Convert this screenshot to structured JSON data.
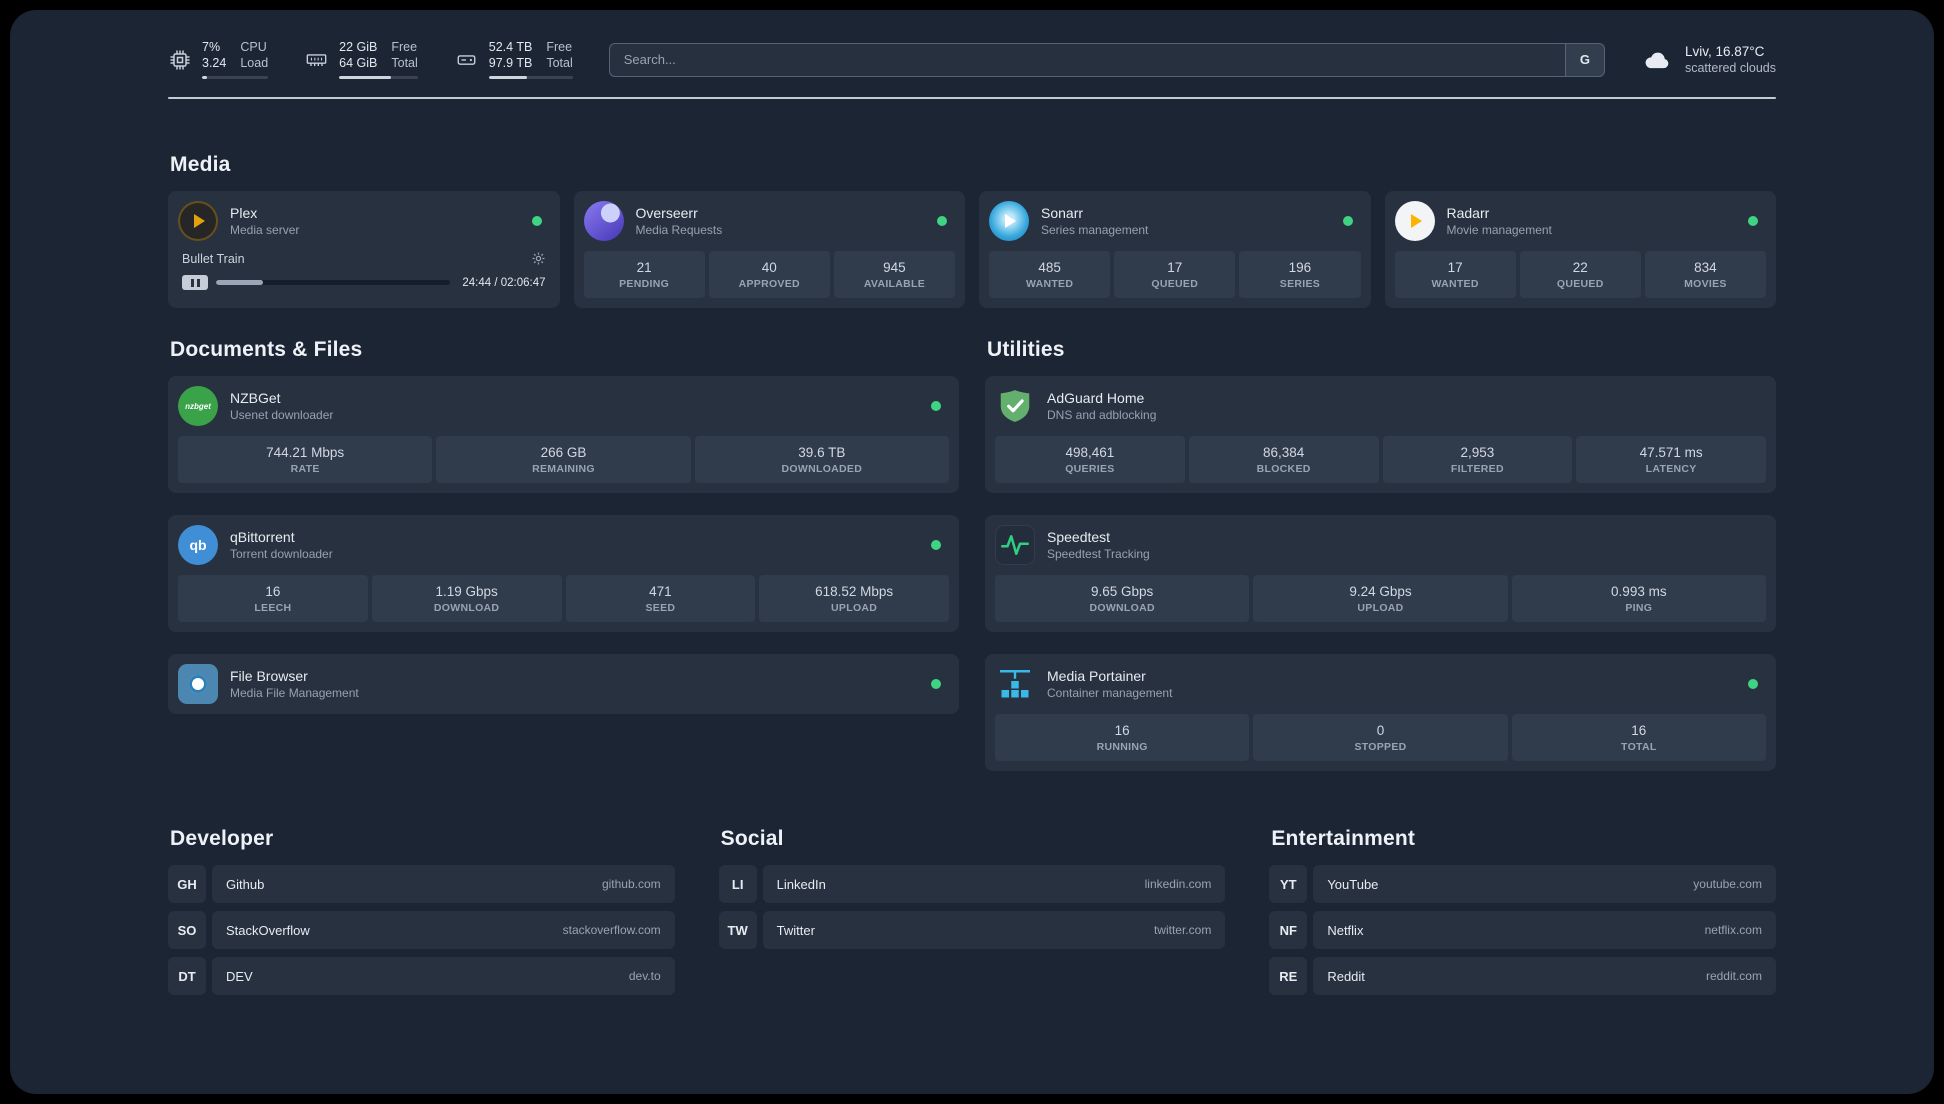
{
  "topbar": {
    "cpu": {
      "value_top": "7%",
      "value_bottom": "3.24",
      "label_top": "CPU",
      "label_bottom": "Load",
      "percent": 7
    },
    "memory": {
      "value_top": "22 GiB",
      "value_bottom": "64 GiB",
      "label_top": "Free",
      "label_bottom": "Total",
      "percent": 66
    },
    "disk": {
      "value_top": "52.4 TB",
      "value_bottom": "97.9 TB",
      "label_top": "Free",
      "label_bottom": "Total",
      "percent": 46
    },
    "search": {
      "placeholder": "Search...",
      "button_label": "G"
    },
    "weather": {
      "location": "Lviv, 16.87°C",
      "condition": "scattered clouds"
    }
  },
  "media": {
    "title": "Media",
    "plex": {
      "name": "Plex",
      "desc": "Media server",
      "now_playing": "Bullet Train",
      "time": "24:44 / 02:06:47",
      "progress_percent": 20
    },
    "overseerr": {
      "name": "Overseerr",
      "desc": "Media Requests",
      "stats": [
        {
          "value": "21",
          "label": "PENDING"
        },
        {
          "value": "40",
          "label": "APPROVED"
        },
        {
          "value": "945",
          "label": "AVAILABLE"
        }
      ]
    },
    "sonarr": {
      "name": "Sonarr",
      "desc": "Series management",
      "stats": [
        {
          "value": "485",
          "label": "WANTED"
        },
        {
          "value": "17",
          "label": "QUEUED"
        },
        {
          "value": "196",
          "label": "SERIES"
        }
      ]
    },
    "radarr": {
      "name": "Radarr",
      "desc": "Movie management",
      "stats": [
        {
          "value": "17",
          "label": "WANTED"
        },
        {
          "value": "22",
          "label": "QUEUED"
        },
        {
          "value": "834",
          "label": "MOVIES"
        }
      ]
    }
  },
  "documents": {
    "title": "Documents & Files",
    "nzbget": {
      "name": "NZBGet",
      "desc": "Usenet downloader",
      "icon_text": "nzbget",
      "stats": [
        {
          "value": "744.21 Mbps",
          "label": "RATE"
        },
        {
          "value": "266 GB",
          "label": "REMAINING"
        },
        {
          "value": "39.6 TB",
          "label": "DOWNLOADED"
        }
      ]
    },
    "qbittorrent": {
      "name": "qBittorrent",
      "desc": "Torrent downloader",
      "icon_text": "qb",
      "stats": [
        {
          "value": "16",
          "label": "LEECH"
        },
        {
          "value": "1.19 Gbps",
          "label": "DOWNLOAD"
        },
        {
          "value": "471",
          "label": "SEED"
        },
        {
          "value": "618.52 Mbps",
          "label": "UPLOAD"
        }
      ]
    },
    "filebrowser": {
      "name": "File Browser",
      "desc": "Media File Management"
    }
  },
  "utilities": {
    "title": "Utilities",
    "adguard": {
      "name": "AdGuard Home",
      "desc": "DNS and adblocking",
      "stats": [
        {
          "value": "498,461",
          "label": "QUERIES"
        },
        {
          "value": "86,384",
          "label": "BLOCKED"
        },
        {
          "value": "2,953",
          "label": "FILTERED"
        },
        {
          "value": "47.571 ms",
          "label": "LATENCY"
        }
      ]
    },
    "speedtest": {
      "name": "Speedtest",
      "desc": "Speedtest Tracking",
      "stats": [
        {
          "value": "9.65 Gbps",
          "label": "DOWNLOAD"
        },
        {
          "value": "9.24 Gbps",
          "label": "UPLOAD"
        },
        {
          "value": "0.993 ms",
          "label": "PING"
        }
      ]
    },
    "portainer": {
      "name": "Media Portainer",
      "desc": "Container management",
      "stats": [
        {
          "value": "16",
          "label": "RUNNING"
        },
        {
          "value": "0",
          "label": "STOPPED"
        },
        {
          "value": "16",
          "label": "TOTAL"
        }
      ]
    }
  },
  "bookmarks": {
    "developer": {
      "title": "Developer",
      "items": [
        {
          "abbr": "GH",
          "name": "Github",
          "url": "github.com"
        },
        {
          "abbr": "SO",
          "name": "StackOverflow",
          "url": "stackoverflow.com"
        },
        {
          "abbr": "DT",
          "name": "DEV",
          "url": "dev.to"
        }
      ]
    },
    "social": {
      "title": "Social",
      "items": [
        {
          "abbr": "LI",
          "name": "LinkedIn",
          "url": "linkedin.com"
        },
        {
          "abbr": "TW",
          "name": "Twitter",
          "url": "twitter.com"
        }
      ]
    },
    "entertainment": {
      "title": "Entertainment",
      "items": [
        {
          "abbr": "YT",
          "name": "YouTube",
          "url": "youtube.com"
        },
        {
          "abbr": "NF",
          "name": "Netflix",
          "url": "netflix.com"
        },
        {
          "abbr": "RE",
          "name": "Reddit",
          "url": "reddit.com"
        }
      ]
    }
  }
}
